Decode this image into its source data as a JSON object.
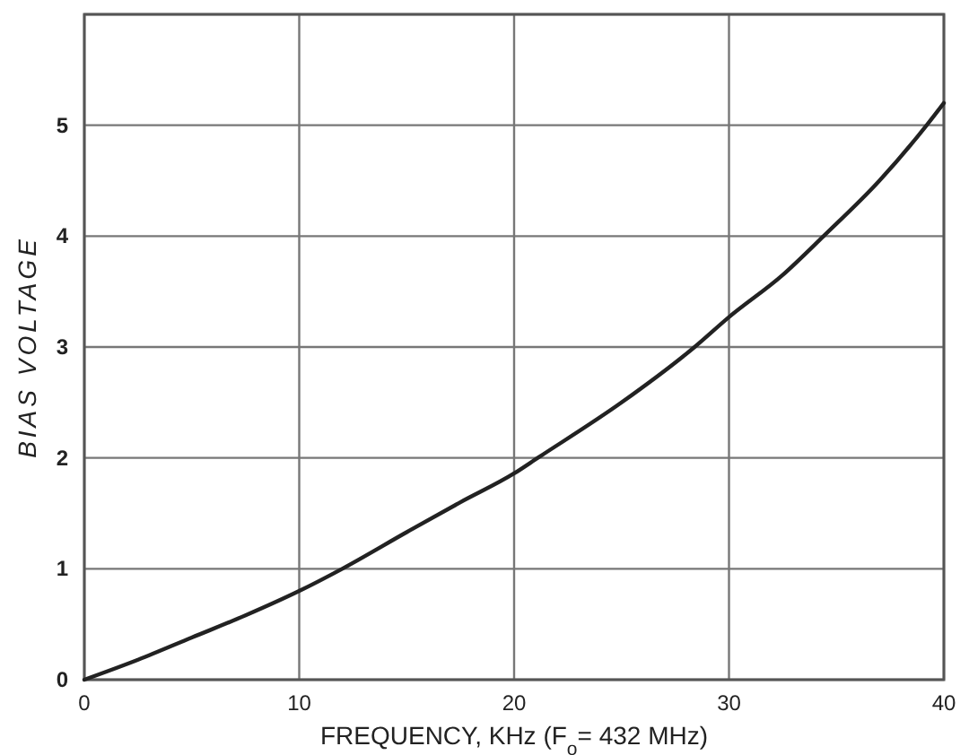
{
  "chart_data": {
    "type": "line",
    "xlabel": "FREQUENCY, KHz (F$_{o}$= 432 MHz)",
    "ylabel": "BIAS VOLTAGE",
    "x": [
      0,
      2.5,
      5,
      7.5,
      10,
      12,
      15,
      17.5,
      20,
      21.1,
      25,
      28.4,
      30,
      32.5,
      34.4,
      37,
      39.2,
      40
    ],
    "series": [
      {
        "color": "#222222",
        "values": [
          0,
          0.18,
          0.38,
          0.58,
          0.8,
          1.0,
          1.33,
          1.6,
          1.86,
          2.0,
          2.5,
          3.0,
          3.27,
          3.65,
          4.0,
          4.5,
          5.0,
          5.2
        ]
      }
    ],
    "xlim": [
      0,
      40
    ],
    "ylim": [
      0,
      6
    ],
    "xticks": [
      0,
      10,
      20,
      30,
      40
    ],
    "yticks": [
      0,
      1,
      2,
      3,
      4,
      5,
      {
        "value": 6,
        "label": null
      }
    ],
    "grid": true,
    "marker": "none",
    "line_style": "solid"
  }
}
